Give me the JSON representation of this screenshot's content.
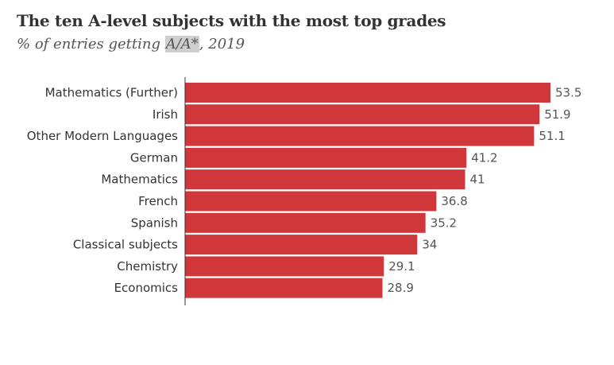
{
  "header": {
    "title": "The ten A-level subjects with the most top grades",
    "subtitle_prefix": "% of entries getting ",
    "subtitle_highlight": "A/A*",
    "subtitle_suffix": ", 2019"
  },
  "colors": {
    "bar": "#d0373b",
    "axis": "#333333"
  },
  "chart_data": {
    "type": "bar",
    "orientation": "horizontal",
    "title": "The ten A-level subjects with the most top grades",
    "subtitle": "% of entries getting A/A*, 2019",
    "categories": [
      "Mathematics (Further)",
      "Irish",
      "Other Modern Languages",
      "German",
      "Mathematics",
      "French",
      "Spanish",
      "Classical subjects",
      "Chemistry",
      "Economics"
    ],
    "values": [
      53.5,
      51.9,
      51.1,
      41.2,
      41,
      36.8,
      35.2,
      34,
      29.1,
      28.9
    ],
    "value_labels": [
      "53.5",
      "51.9",
      "51.1",
      "41.2",
      "41",
      "36.8",
      "35.2",
      "34",
      "29.1",
      "28.9"
    ],
    "xlim": [
      0,
      53.5
    ],
    "grid": false,
    "legend": "none"
  }
}
